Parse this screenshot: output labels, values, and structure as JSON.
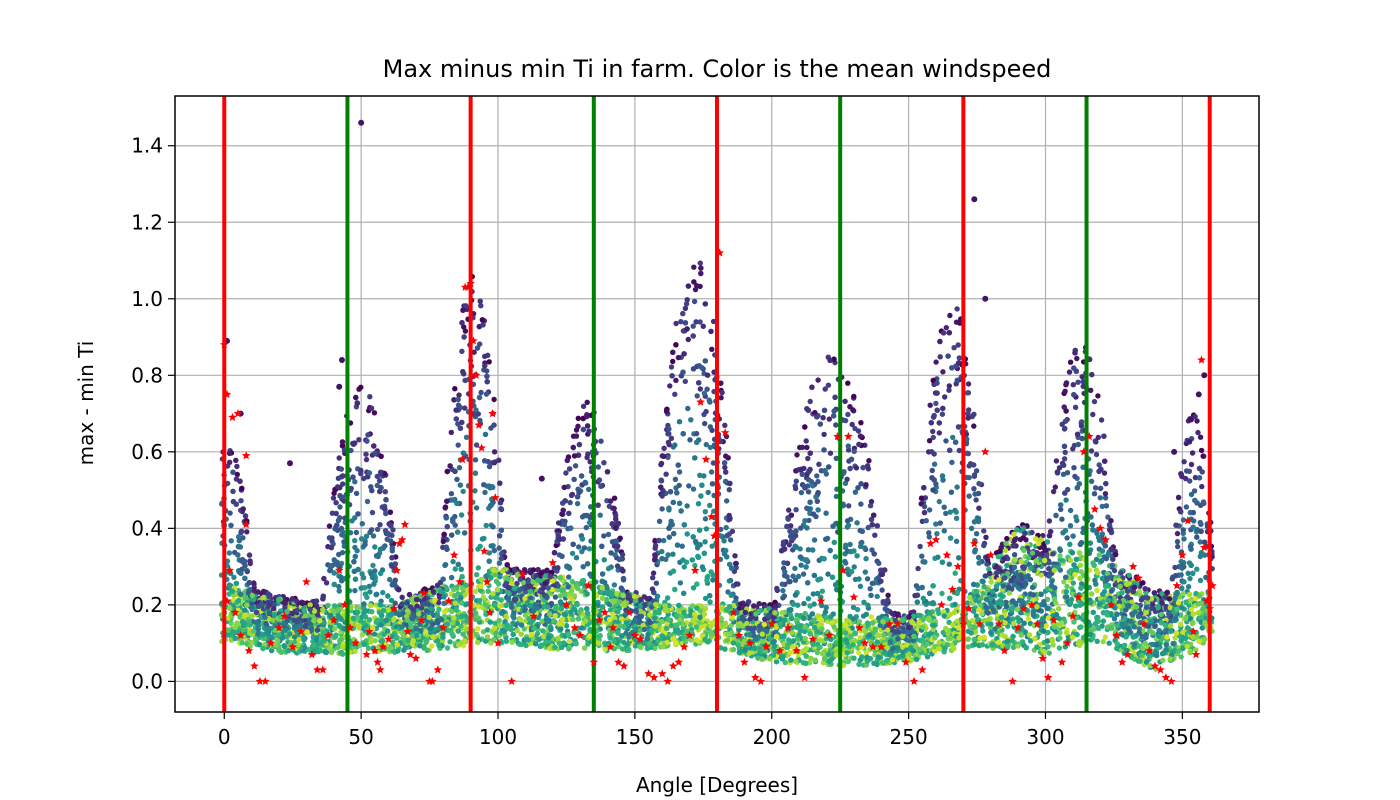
{
  "chart_data": {
    "type": "scatter",
    "title": "Max minus min Ti in farm. Color is the mean windspeed",
    "xlabel": "Angle [Degrees]",
    "ylabel": "max - min Ti",
    "xlim": [
      -18,
      378
    ],
    "ylim": [
      -0.08,
      1.53
    ],
    "xticks": [
      0,
      50,
      100,
      150,
      200,
      250,
      300,
      350
    ],
    "yticks": [
      0.0,
      0.2,
      0.4,
      0.6,
      0.8,
      1.0,
      1.2,
      1.4
    ],
    "xtick_labels": [
      "0",
      "50",
      "100",
      "150",
      "200",
      "250",
      "300",
      "350"
    ],
    "ytick_labels": [
      "0.0",
      "0.2",
      "0.4",
      "0.6",
      "0.8",
      "1.0",
      "1.2",
      "1.4"
    ],
    "grid": true,
    "colormap": "viridis",
    "vertical_lines": [
      {
        "x": 0,
        "color": "#ff0000"
      },
      {
        "x": 45,
        "color": "#008000"
      },
      {
        "x": 90,
        "color": "#ff0000"
      },
      {
        "x": 135,
        "color": "#008000"
      },
      {
        "x": 180,
        "color": "#ff0000"
      },
      {
        "x": 225,
        "color": "#008000"
      },
      {
        "x": 270,
        "color": "#ff0000"
      },
      {
        "x": 315,
        "color": "#008000"
      },
      {
        "x": 360,
        "color": "#ff0000"
      }
    ],
    "peaks": [
      {
        "x": 0,
        "ymax": 0.62,
        "halfwidth": 14
      },
      {
        "x": 50,
        "ymax": 0.74,
        "halfwidth": 17
      },
      {
        "x": 91,
        "ymax": 1.02,
        "halfwidth": 14
      },
      {
        "x": 133,
        "ymax": 0.7,
        "halfwidth": 17
      },
      {
        "x": 172,
        "ymax": 1.07,
        "halfwidth": 18
      },
      {
        "x": 222,
        "ymax": 0.82,
        "halfwidth": 24
      },
      {
        "x": 266,
        "ymax": 0.95,
        "halfwidth": 16
      },
      {
        "x": 313,
        "ymax": 0.86,
        "halfwidth": 16
      },
      {
        "x": 354,
        "ymax": 0.67,
        "halfwidth": 10
      }
    ],
    "baseline": [
      [
        0,
        0.11
      ],
      [
        10,
        0.09
      ],
      [
        25,
        0.07
      ],
      [
        50,
        0.07
      ],
      [
        75,
        0.08
      ],
      [
        95,
        0.1
      ],
      [
        110,
        0.09
      ],
      [
        130,
        0.08
      ],
      [
        150,
        0.08
      ],
      [
        175,
        0.1
      ],
      [
        200,
        0.05
      ],
      [
        230,
        0.04
      ],
      [
        250,
        0.05
      ],
      [
        270,
        0.09
      ],
      [
        300,
        0.07
      ],
      [
        320,
        0.1
      ],
      [
        340,
        0.03
      ],
      [
        360,
        0.1
      ]
    ],
    "bulge": [
      [
        0,
        0.2
      ],
      [
        30,
        0.15
      ],
      [
        60,
        0.15
      ],
      [
        80,
        0.2
      ],
      [
        100,
        0.25
      ],
      [
        130,
        0.22
      ],
      [
        160,
        0.15
      ],
      [
        190,
        0.15
      ],
      [
        220,
        0.12
      ],
      [
        250,
        0.12
      ],
      [
        270,
        0.15
      ],
      [
        290,
        0.36
      ],
      [
        305,
        0.3
      ],
      [
        320,
        0.28
      ],
      [
        340,
        0.18
      ],
      [
        360,
        0.18
      ]
    ],
    "outlier_points": [
      {
        "x": 50,
        "y": 1.46
      },
      {
        "x": 274,
        "y": 1.26
      },
      {
        "x": 278,
        "y": 1.0
      },
      {
        "x": 1,
        "y": 0.89
      },
      {
        "x": 43,
        "y": 0.84
      },
      {
        "x": 42,
        "y": 0.77
      },
      {
        "x": 6,
        "y": 0.7
      },
      {
        "x": 24,
        "y": 0.57
      },
      {
        "x": 116,
        "y": 0.53
      },
      {
        "x": 347,
        "y": 0.6
      },
      {
        "x": 356,
        "y": 0.75
      },
      {
        "x": 358,
        "y": 0.8
      }
    ],
    "marker_points": [
      [
        0,
        0.88
      ],
      [
        1,
        0.75
      ],
      [
        3,
        0.69
      ],
      [
        5,
        0.7
      ],
      [
        8,
        0.59
      ],
      [
        8,
        0.41
      ],
      [
        2,
        0.29
      ],
      [
        1,
        0.21
      ],
      [
        4,
        0.18
      ],
      [
        6,
        0.12
      ],
      [
        9,
        0.08
      ],
      [
        11,
        0.04
      ],
      [
        13,
        0.0
      ],
      [
        15,
        0.0
      ],
      [
        17,
        0.1
      ],
      [
        20,
        0.14
      ],
      [
        22,
        0.17
      ],
      [
        25,
        0.09
      ],
      [
        28,
        0.13
      ],
      [
        30,
        0.26
      ],
      [
        32,
        0.07
      ],
      [
        34,
        0.03
      ],
      [
        36,
        0.03
      ],
      [
        38,
        0.12
      ],
      [
        40,
        0.16
      ],
      [
        42,
        0.29
      ],
      [
        44,
        0.2
      ],
      [
        46,
        0.14
      ],
      [
        48,
        0.1
      ],
      [
        52,
        0.07
      ],
      [
        53,
        0.13
      ],
      [
        55,
        0.08
      ],
      [
        56,
        0.05
      ],
      [
        57,
        0.03
      ],
      [
        58,
        0.09
      ],
      [
        60,
        0.11
      ],
      [
        62,
        0.19
      ],
      [
        63,
        0.29
      ],
      [
        64,
        0.36
      ],
      [
        65,
        0.37
      ],
      [
        66,
        0.41
      ],
      [
        67,
        0.13
      ],
      [
        68,
        0.07
      ],
      [
        70,
        0.06
      ],
      [
        72,
        0.16
      ],
      [
        73,
        0.23
      ],
      [
        75,
        0.0
      ],
      [
        76,
        0.0
      ],
      [
        78,
        0.03
      ],
      [
        80,
        0.14
      ],
      [
        82,
        0.21
      ],
      [
        84,
        0.33
      ],
      [
        86,
        0.26
      ],
      [
        87,
        0.58
      ],
      [
        88,
        1.03
      ],
      [
        89,
        1.03
      ],
      [
        90,
        1.04
      ],
      [
        91,
        0.89
      ],
      [
        92,
        0.8
      ],
      [
        93,
        0.67
      ],
      [
        94,
        0.61
      ],
      [
        95,
        0.34
      ],
      [
        96,
        0.26
      ],
      [
        97,
        0.18
      ],
      [
        98,
        0.7
      ],
      [
        99,
        0.48
      ],
      [
        100,
        0.1
      ],
      [
        105,
        0.0
      ],
      [
        109,
        0.28
      ],
      [
        113,
        0.17
      ],
      [
        120,
        0.31
      ],
      [
        125,
        0.2
      ],
      [
        128,
        0.14
      ],
      [
        130,
        0.12
      ],
      [
        133,
        0.25
      ],
      [
        135,
        0.05
      ],
      [
        137,
        0.16
      ],
      [
        139,
        0.18
      ],
      [
        141,
        0.09
      ],
      [
        142,
        0.14
      ],
      [
        144,
        0.05
      ],
      [
        146,
        0.04
      ],
      [
        148,
        0.18
      ],
      [
        150,
        0.12
      ],
      [
        152,
        0.11
      ],
      [
        155,
        0.02
      ],
      [
        157,
        0.01
      ],
      [
        160,
        0.02
      ],
      [
        162,
        0.0
      ],
      [
        164,
        0.04
      ],
      [
        166,
        0.05
      ],
      [
        168,
        0.09
      ],
      [
        170,
        0.12
      ],
      [
        172,
        0.29
      ],
      [
        174,
        0.73
      ],
      [
        176,
        0.58
      ],
      [
        178,
        0.43
      ],
      [
        179,
        0.38
      ],
      [
        181,
        1.12
      ],
      [
        183,
        0.65
      ],
      [
        186,
        0.18
      ],
      [
        188,
        0.12
      ],
      [
        190,
        0.05
      ],
      [
        192,
        0.1
      ],
      [
        194,
        0.01
      ],
      [
        196,
        0.0
      ],
      [
        198,
        0.09
      ],
      [
        200,
        0.15
      ],
      [
        203,
        0.08
      ],
      [
        206,
        0.14
      ],
      [
        209,
        0.08
      ],
      [
        212,
        0.01
      ],
      [
        215,
        0.11
      ],
      [
        218,
        0.21
      ],
      [
        221,
        0.12
      ],
      [
        224,
        0.64
      ],
      [
        226,
        0.29
      ],
      [
        228,
        0.64
      ],
      [
        230,
        0.22
      ],
      [
        232,
        0.14
      ],
      [
        234,
        0.1
      ],
      [
        237,
        0.09
      ],
      [
        240,
        0.09
      ],
      [
        243,
        0.15
      ],
      [
        246,
        0.15
      ],
      [
        249,
        0.05
      ],
      [
        252,
        0.0
      ],
      [
        255,
        0.03
      ],
      [
        258,
        0.36
      ],
      [
        260,
        0.37
      ],
      [
        262,
        0.2
      ],
      [
        264,
        0.33
      ],
      [
        266,
        0.24
      ],
      [
        268,
        0.3
      ],
      [
        270,
        0.15
      ],
      [
        272,
        0.19
      ],
      [
        274,
        0.36
      ],
      [
        276,
        0.15
      ],
      [
        278,
        0.6
      ],
      [
        280,
        0.33
      ],
      [
        283,
        0.15
      ],
      [
        285,
        0.08
      ],
      [
        288,
        0.0
      ],
      [
        290,
        0.14
      ],
      [
        292,
        0.19
      ],
      [
        295,
        0.2
      ],
      [
        297,
        0.15
      ],
      [
        299,
        0.06
      ],
      [
        301,
        0.01
      ],
      [
        303,
        0.16
      ],
      [
        306,
        0.05
      ],
      [
        308,
        0.1
      ],
      [
        310,
        0.17
      ],
      [
        312,
        0.22
      ],
      [
        314,
        0.6
      ],
      [
        316,
        0.64
      ],
      [
        318,
        0.45
      ],
      [
        320,
        0.4
      ],
      [
        322,
        0.37
      ],
      [
        324,
        0.2
      ],
      [
        326,
        0.12
      ],
      [
        328,
        0.05
      ],
      [
        330,
        0.07
      ],
      [
        332,
        0.3
      ],
      [
        334,
        0.27
      ],
      [
        336,
        0.15
      ],
      [
        338,
        0.08
      ],
      [
        340,
        0.04
      ],
      [
        342,
        0.03
      ],
      [
        344,
        0.01
      ],
      [
        346,
        0.0
      ],
      [
        348,
        0.25
      ],
      [
        350,
        0.33
      ],
      [
        352,
        0.42
      ],
      [
        354,
        0.13
      ],
      [
        355,
        0.07
      ],
      [
        357,
        0.84
      ],
      [
        358,
        0.35
      ],
      [
        359,
        0.21
      ],
      [
        360,
        0.19
      ],
      [
        361,
        0.25
      ]
    ]
  }
}
